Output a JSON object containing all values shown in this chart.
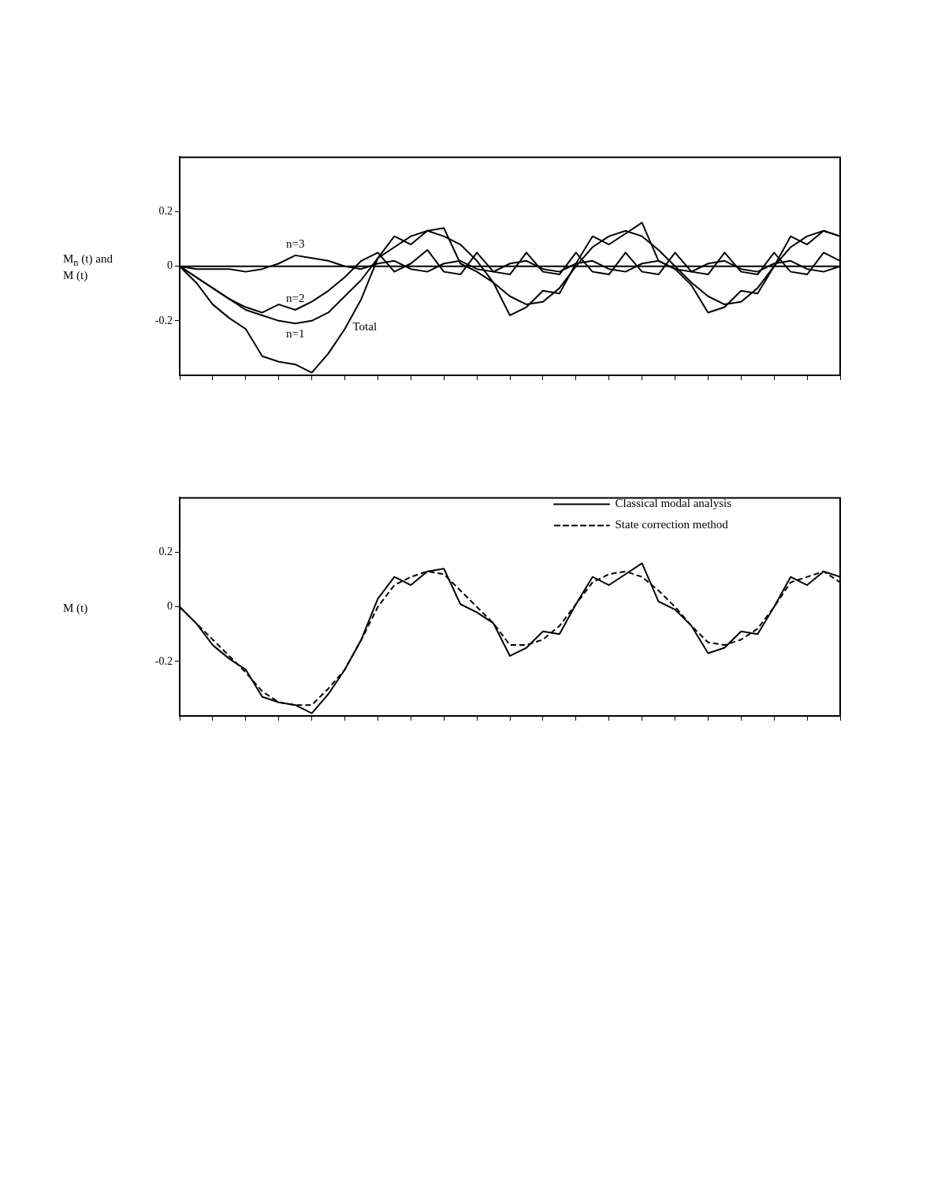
{
  "chart_data": [
    {
      "type": "line",
      "ylabel": "M$_{n}$ (t) and M (t)",
      "categories": [
        null,
        null,
        null,
        null,
        null,
        null,
        null,
        null,
        null,
        null,
        null,
        null,
        null,
        null,
        null,
        null,
        null,
        null,
        null,
        null,
        null,
        null,
        null,
        null,
        null,
        null,
        null,
        null,
        null,
        null,
        null,
        null,
        null,
        null,
        null,
        null,
        null,
        null,
        null,
        null,
        null
      ],
      "ylim": [
        -0.4,
        0.4
      ],
      "yticks": [
        -0.2,
        0,
        0.2
      ],
      "tick_labels": "y",
      "grid": false,
      "legend": false,
      "line_style": "solid",
      "ref_lines": [
        {
          "axis": "y",
          "value": 0
        }
      ],
      "series": [
        {
          "name": "Total",
          "color": "#000000",
          "values": [
            0,
            -0.06,
            -0.14,
            -0.19,
            -0.23,
            -0.33,
            -0.35,
            -0.36,
            -0.39,
            -0.32,
            -0.23,
            -0.12,
            0.03,
            0.11,
            0.08,
            0.13,
            0.14,
            0.01,
            -0.02,
            -0.06,
            -0.18,
            -0.15,
            -0.09,
            -0.1,
            0.01,
            0.11,
            0.08,
            0.12,
            0.16,
            0.02,
            -0.01,
            -0.07,
            -0.17,
            -0.15,
            -0.09,
            -0.1,
            0,
            0.11,
            0.08,
            0.13,
            0.11
          ]
        },
        {
          "name": "n=1",
          "color": "#000000",
          "values": [
            0,
            -0.04,
            -0.08,
            -0.12,
            -0.16,
            -0.18,
            -0.2,
            -0.21,
            -0.2,
            -0.17,
            -0.11,
            -0.05,
            0.03,
            0.07,
            0.11,
            0.13,
            0.11,
            0.08,
            0.02,
            -0.06,
            -0.11,
            -0.14,
            -0.13,
            -0.08,
            0,
            0.07,
            0.11,
            0.13,
            0.11,
            0.06,
            0,
            -0.06,
            -0.11,
            -0.14,
            -0.13,
            -0.08,
            0,
            0.07,
            0.11,
            0.13,
            0.11
          ]
        },
        {
          "name": "n=2",
          "color": "#000000",
          "values": [
            0,
            -0.04,
            -0.08,
            -0.12,
            -0.15,
            -0.17,
            -0.14,
            -0.16,
            -0.13,
            -0.09,
            -0.04,
            0.02,
            0.05,
            -0.02,
            0.01,
            0.06,
            -0.02,
            -0.03,
            0.05,
            -0.02,
            -0.03,
            0.05,
            -0.02,
            -0.03,
            0.05,
            -0.02,
            -0.03,
            0.05,
            -0.02,
            -0.03,
            0.05,
            -0.02,
            -0.03,
            0.05,
            -0.02,
            -0.03,
            0.05,
            -0.02,
            -0.03,
            0.05,
            0.02
          ]
        },
        {
          "name": "n=3",
          "color": "#000000",
          "values": [
            0,
            -0.01,
            -0.01,
            -0.01,
            -0.02,
            -0.01,
            0.01,
            0.04,
            0.03,
            0.02,
            0,
            -0.01,
            0.01,
            0.02,
            -0.01,
            -0.02,
            0.01,
            0.02,
            -0.01,
            -0.02,
            0.01,
            0.02,
            -0.01,
            -0.02,
            0.01,
            0.02,
            -0.01,
            -0.02,
            0.01,
            0.02,
            -0.01,
            -0.02,
            0.01,
            0.02,
            -0.01,
            -0.02,
            0.01,
            0.02,
            -0.01,
            -0.02,
            0
          ]
        }
      ]
    },
    {
      "type": "line",
      "ylabel": "M (t)",
      "categories": [
        null,
        null,
        null,
        null,
        null,
        null,
        null,
        null,
        null,
        null,
        null,
        null,
        null,
        null,
        null,
        null,
        null,
        null,
        null,
        null,
        null,
        null,
        null,
        null,
        null,
        null,
        null,
        null,
        null,
        null,
        null,
        null,
        null,
        null,
        null,
        null,
        null,
        null,
        null,
        null,
        null
      ],
      "ylim": [
        -0.4,
        0.4
      ],
      "yticks": [
        -0.2,
        0,
        0.2
      ],
      "tick_labels": "y",
      "grid": false,
      "legend": "top right",
      "series": [
        {
          "name": "Classical modal analysis",
          "color": "#000000",
          "line_style": "solid",
          "values": [
            0,
            -0.06,
            -0.14,
            -0.19,
            -0.23,
            -0.33,
            -0.35,
            -0.36,
            -0.39,
            -0.32,
            -0.23,
            -0.12,
            0.03,
            0.11,
            0.08,
            0.13,
            0.14,
            0.01,
            -0.02,
            -0.06,
            -0.18,
            -0.15,
            -0.09,
            -0.1,
            0.01,
            0.11,
            0.08,
            0.12,
            0.16,
            0.02,
            -0.01,
            -0.07,
            -0.17,
            -0.15,
            -0.09,
            -0.1,
            0,
            0.11,
            0.08,
            0.13,
            0.11
          ]
        },
        {
          "name": "State correction method",
          "color": "#000000",
          "line_style": "dashed",
          "values": [
            0,
            -0.06,
            -0.12,
            -0.18,
            -0.24,
            -0.31,
            -0.35,
            -0.36,
            -0.36,
            -0.3,
            -0.23,
            -0.12,
            0,
            0.08,
            0.11,
            0.13,
            0.12,
            0.06,
            0,
            -0.06,
            -0.14,
            -0.14,
            -0.12,
            -0.07,
            0.01,
            0.09,
            0.12,
            0.13,
            0.11,
            0.06,
            0,
            -0.07,
            -0.13,
            -0.14,
            -0.12,
            -0.08,
            0,
            0.09,
            0.11,
            0.13,
            0.09
          ]
        }
      ]
    }
  ]
}
